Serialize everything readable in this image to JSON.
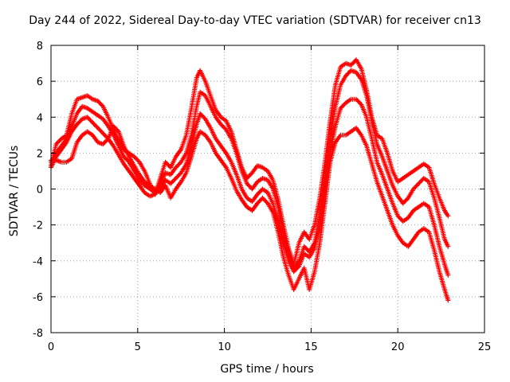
{
  "chart_data": {
    "type": "scatter",
    "title": "Day 244 of 2022, Sidereal Day-to-day VTEC variation (SDTVAR) for receiver cn13",
    "xlabel": "GPS time / hours",
    "ylabel": "SDTVAR / TECUs",
    "xlim": [
      0,
      25
    ],
    "ylim": [
      -8,
      8
    ],
    "xticks": [
      "0",
      "5",
      "10",
      "15",
      "20",
      "25"
    ],
    "yticks": [
      "8",
      "6",
      "4",
      "2",
      "0",
      "-2",
      "-4",
      "-6",
      "-8"
    ],
    "grid": true,
    "marker": "+",
    "color": "#ff0000",
    "series": [
      {
        "x": [
          0.0,
          0.3,
          0.6,
          0.9,
          1.2,
          1.5,
          1.8,
          2.1,
          2.4,
          2.7,
          3.0,
          3.3,
          3.6,
          3.9,
          4.2,
          4.5,
          4.8,
          5.1,
          5.4,
          5.7,
          6.0,
          6.3,
          6.6,
          6.9,
          7.2,
          7.5,
          7.8,
          8.1,
          8.4,
          8.6,
          8.9,
          9.2,
          9.5,
          9.8,
          10.1,
          10.4,
          10.7,
          11.0,
          11.3,
          11.6,
          11.9,
          12.2,
          12.5,
          12.8,
          13.1,
          13.4,
          13.7,
          14.0,
          14.3,
          14.6,
          14.9,
          15.2,
          15.5,
          15.8,
          16.1,
          16.4,
          16.7,
          17.0,
          17.3,
          17.6,
          17.9,
          18.2,
          18.5,
          18.8,
          19.1,
          19.4,
          19.7,
          20.0,
          20.3,
          20.6,
          20.9,
          21.2,
          21.5,
          21.8,
          22.1,
          22.4,
          22.7,
          22.9
        ],
        "y": [
          1.3,
          2.5,
          2.8,
          3.0,
          4.2,
          5.0,
          5.1,
          5.2,
          5.0,
          4.9,
          4.6,
          4.0,
          3.3,
          2.7,
          2.2,
          2.0,
          1.8,
          1.5,
          1.0,
          0.3,
          -0.3,
          0.6,
          1.5,
          1.2,
          1.8,
          2.2,
          3.0,
          4.5,
          6.2,
          6.6,
          6.0,
          5.2,
          4.4,
          4.0,
          3.8,
          3.2,
          2.2,
          1.2,
          0.6,
          0.9,
          1.3,
          1.2,
          1.0,
          0.5,
          -0.6,
          -2.0,
          -3.3,
          -4.2,
          -3.0,
          -2.4,
          -2.8,
          -2.0,
          -0.5,
          1.5,
          3.8,
          5.8,
          6.8,
          7.0,
          6.9,
          7.2,
          6.7,
          5.5,
          4.0,
          3.0,
          2.8,
          2.0,
          1.0,
          0.4,
          0.6,
          0.8,
          1.0,
          1.2,
          1.4,
          1.2,
          0.3,
          -0.5,
          -1.2,
          -1.5
        ]
      },
      {
        "x": [
          0.0,
          0.3,
          0.6,
          0.9,
          1.2,
          1.5,
          1.8,
          2.1,
          2.4,
          2.7,
          3.0,
          3.3,
          3.6,
          3.9,
          4.2,
          4.5,
          4.8,
          5.1,
          5.4,
          5.7,
          6.0,
          6.3,
          6.6,
          6.9,
          7.2,
          7.5,
          7.8,
          8.1,
          8.4,
          8.6,
          8.9,
          9.2,
          9.5,
          9.8,
          10.1,
          10.4,
          10.7,
          11.0,
          11.3,
          11.6,
          11.9,
          12.2,
          12.5,
          12.8,
          13.1,
          13.4,
          13.7,
          14.0,
          14.3,
          14.6,
          14.9,
          15.2,
          15.5,
          15.8,
          16.1,
          16.4,
          16.7,
          17.0,
          17.3,
          17.6,
          17.9,
          18.2,
          18.5,
          18.8,
          19.1,
          19.4,
          19.7,
          20.0,
          20.3,
          20.6,
          20.9,
          21.2,
          21.5,
          21.8,
          22.1,
          22.4,
          22.7,
          22.9
        ],
        "y": [
          1.5,
          2.0,
          2.4,
          2.8,
          3.5,
          4.2,
          4.6,
          4.5,
          4.3,
          4.1,
          3.9,
          3.5,
          3.0,
          2.4,
          1.8,
          1.5,
          1.0,
          0.5,
          0.2,
          0.0,
          -0.2,
          0.3,
          0.9,
          0.8,
          1.2,
          1.5,
          2.0,
          3.0,
          4.6,
          5.4,
          5.2,
          4.6,
          4.0,
          3.6,
          3.3,
          2.8,
          2.0,
          1.0,
          0.3,
          0.0,
          0.4,
          0.6,
          0.5,
          0.0,
          -1.0,
          -2.4,
          -3.6,
          -4.4,
          -4.0,
          -3.2,
          -3.5,
          -3.0,
          -1.5,
          0.5,
          2.8,
          4.6,
          5.8,
          6.3,
          6.6,
          6.5,
          6.1,
          5.2,
          3.8,
          2.5,
          1.8,
          1.0,
          0.2,
          -0.4,
          -0.8,
          -0.5,
          0.0,
          0.3,
          0.6,
          0.4,
          -0.5,
          -1.6,
          -2.8,
          -3.2
        ]
      },
      {
        "x": [
          0.0,
          0.3,
          0.6,
          0.9,
          1.2,
          1.5,
          1.8,
          2.1,
          2.4,
          2.7,
          3.0,
          3.3,
          3.6,
          3.9,
          4.2,
          4.5,
          4.8,
          5.1,
          5.4,
          5.7,
          6.0,
          6.3,
          6.6,
          6.9,
          7.2,
          7.5,
          7.8,
          8.1,
          8.4,
          8.6,
          8.9,
          9.2,
          9.5,
          9.8,
          10.1,
          10.4,
          10.7,
          11.0,
          11.3,
          11.6,
          11.9,
          12.2,
          12.5,
          12.8,
          13.1,
          13.4,
          13.7,
          14.0,
          14.3,
          14.6,
          14.9,
          15.2,
          15.5,
          15.8,
          16.1,
          16.4,
          16.7,
          17.0,
          17.3,
          17.6,
          17.9,
          18.2,
          18.5,
          18.8,
          19.1,
          19.4,
          19.7,
          20.0,
          20.3,
          20.6,
          20.9,
          21.2,
          21.5,
          21.8,
          22.1,
          22.4,
          22.7,
          22.9
        ],
        "y": [
          1.2,
          1.8,
          2.2,
          2.6,
          3.2,
          3.6,
          3.9,
          4.0,
          3.7,
          3.4,
          3.1,
          2.8,
          2.4,
          1.9,
          1.4,
          1.0,
          0.6,
          0.2,
          -0.2,
          -0.4,
          -0.3,
          0.1,
          0.5,
          0.3,
          0.6,
          0.9,
          1.4,
          2.4,
          3.6,
          4.2,
          3.9,
          3.4,
          2.8,
          2.4,
          2.0,
          1.5,
          0.8,
          0.0,
          -0.5,
          -0.7,
          -0.3,
          0.0,
          -0.2,
          -0.8,
          -1.8,
          -3.0,
          -4.0,
          -4.6,
          -4.3,
          -3.6,
          -3.8,
          -3.3,
          -2.0,
          0.0,
          2.0,
          3.5,
          4.5,
          4.8,
          5.0,
          5.0,
          4.7,
          4.0,
          2.8,
          1.5,
          0.8,
          0.0,
          -0.8,
          -1.5,
          -1.8,
          -1.6,
          -1.2,
          -1.0,
          -0.8,
          -1.0,
          -2.0,
          -3.2,
          -4.2,
          -4.8
        ]
      },
      {
        "x": [
          0.0,
          0.3,
          0.6,
          0.9,
          1.2,
          1.5,
          1.8,
          2.1,
          2.4,
          2.7,
          3.0,
          3.3,
          3.6,
          3.9,
          4.2,
          4.5,
          4.8,
          5.1,
          5.4,
          5.7,
          6.0,
          6.3,
          6.6,
          6.9,
          7.2,
          7.5,
          7.8,
          8.1,
          8.4,
          8.6,
          8.9,
          9.2,
          9.5,
          9.8,
          10.1,
          10.4,
          10.7,
          11.0,
          11.3,
          11.6,
          11.9,
          12.2,
          12.5,
          12.8,
          13.1,
          13.4,
          13.7,
          14.0,
          14.3,
          14.6,
          14.9,
          15.2,
          15.5,
          15.8,
          16.1,
          16.4,
          16.7,
          17.0,
          17.3,
          17.6,
          17.9,
          18.2,
          18.5,
          18.8,
          19.1,
          19.4,
          19.7,
          20.0,
          20.3,
          20.6,
          20.9,
          21.2,
          21.5,
          21.8,
          22.1,
          22.4,
          22.7,
          22.9
        ],
        "y": [
          1.6,
          1.6,
          1.5,
          1.5,
          1.7,
          2.6,
          3.0,
          3.2,
          3.0,
          2.6,
          2.5,
          2.8,
          3.5,
          3.2,
          2.4,
          1.8,
          1.3,
          0.8,
          0.4,
          0.2,
          0.0,
          -0.2,
          0.2,
          -0.5,
          0.0,
          0.4,
          0.9,
          1.8,
          2.8,
          3.2,
          3.0,
          2.6,
          2.0,
          1.6,
          1.2,
          0.6,
          -0.1,
          -0.6,
          -1.0,
          -1.2,
          -0.8,
          -0.5,
          -0.8,
          -1.3,
          -2.4,
          -3.8,
          -4.8,
          -5.6,
          -5.0,
          -4.4,
          -5.6,
          -4.6,
          -3.0,
          -0.8,
          1.5,
          2.6,
          3.0,
          3.0,
          3.2,
          3.4,
          3.0,
          2.4,
          1.4,
          0.4,
          -0.4,
          -1.2,
          -2.0,
          -2.6,
          -3.0,
          -3.2,
          -2.8,
          -2.4,
          -2.2,
          -2.4,
          -3.4,
          -4.6,
          -5.6,
          -6.2
        ]
      }
    ]
  }
}
